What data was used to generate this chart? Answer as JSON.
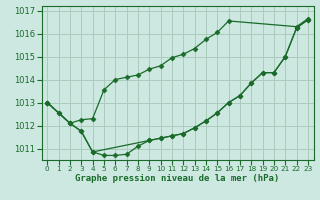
{
  "xlabel": "Graphe pression niveau de la mer (hPa)",
  "background_color": "#cce8e0",
  "grid_color": "#aaccbb",
  "line_color": "#1a6b2a",
  "ylim": [
    1010.5,
    1017.2
  ],
  "xlim": [
    -0.5,
    23.5
  ],
  "yticks": [
    1011,
    1012,
    1013,
    1014,
    1015,
    1016,
    1017
  ],
  "xticks": [
    0,
    1,
    2,
    3,
    4,
    5,
    6,
    7,
    8,
    9,
    10,
    11,
    12,
    13,
    14,
    15,
    16,
    17,
    18,
    19,
    20,
    21,
    22,
    23
  ],
  "series": [
    {
      "x": [
        0,
        1,
        2,
        3,
        4,
        5,
        6,
        7,
        8,
        9,
        10,
        11,
        12,
        13,
        14,
        15,
        16,
        17,
        18,
        19,
        20,
        21,
        22,
        23
      ],
      "y": [
        1013.0,
        1012.55,
        1012.1,
        1011.75,
        1010.85,
        1010.7,
        1010.7,
        1010.75,
        1011.1,
        1011.35,
        1011.45,
        1011.55,
        1011.65,
        1011.9,
        1012.2,
        1012.55,
        1013.0,
        1013.3,
        1013.85,
        1014.3,
        1014.3,
        1015.0,
        1016.25,
        1016.6
      ]
    },
    {
      "x": [
        0,
        2,
        3,
        4,
        5,
        6,
        7,
        8,
        9,
        10,
        11,
        12,
        13,
        14,
        15,
        16,
        22,
        23
      ],
      "y": [
        1013.0,
        1012.1,
        1012.25,
        1012.3,
        1013.55,
        1014.0,
        1014.1,
        1014.2,
        1014.45,
        1014.6,
        1014.95,
        1015.1,
        1015.35,
        1015.75,
        1016.05,
        1016.55,
        1016.3,
        1016.65
      ]
    },
    {
      "x": [
        0,
        1,
        2,
        3,
        4,
        9,
        10,
        11,
        12,
        13,
        14,
        15,
        16,
        17,
        18,
        19,
        20,
        21,
        22,
        23
      ],
      "y": [
        1013.0,
        1012.55,
        1012.1,
        1011.75,
        1010.85,
        1011.35,
        1011.45,
        1011.55,
        1011.65,
        1011.9,
        1012.2,
        1012.55,
        1013.0,
        1013.3,
        1013.85,
        1014.3,
        1014.3,
        1015.0,
        1016.25,
        1016.6
      ]
    }
  ]
}
